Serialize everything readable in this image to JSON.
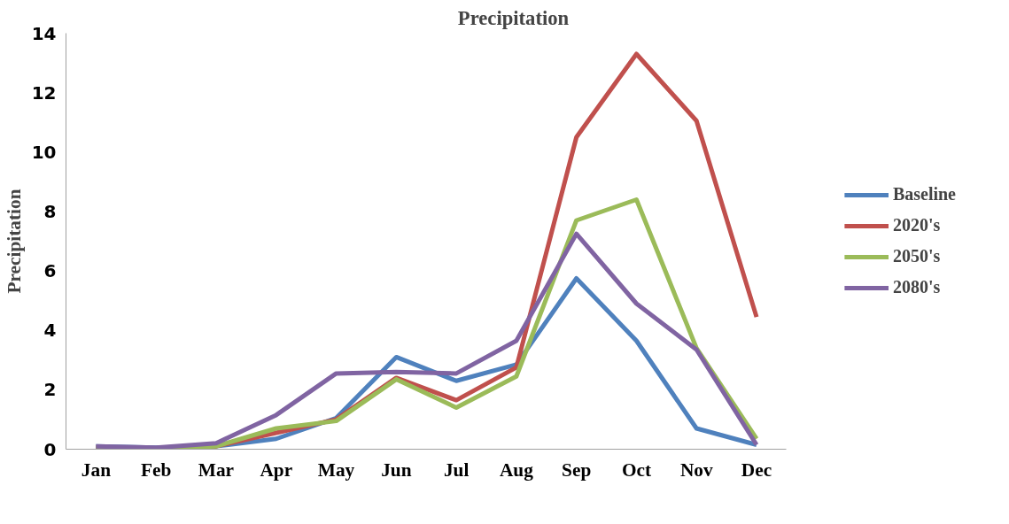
{
  "chart_data": {
    "type": "line",
    "title": "Precipitation",
    "ylabel": "Precipitation",
    "categories": [
      "Jan",
      "Feb",
      "Mar",
      "Apr",
      "May",
      "Jun",
      "Jul",
      "Aug",
      "Sep",
      "Oct",
      "Nov",
      "Dec"
    ],
    "series": [
      {
        "name": "Baseline",
        "color": "#4f81bd",
        "values": [
          0.1,
          0.05,
          0.1,
          0.35,
          1.05,
          3.1,
          2.3,
          2.85,
          5.75,
          3.65,
          0.7,
          0.15
        ]
      },
      {
        "name": "2020's",
        "color": "#c0504d",
        "values": [
          0.05,
          0.02,
          0.1,
          0.55,
          1.0,
          2.4,
          1.65,
          2.75,
          10.5,
          13.3,
          11.05,
          4.45
        ]
      },
      {
        "name": "2050's",
        "color": "#9bbb59",
        "values": [
          0.05,
          0.02,
          0.1,
          0.7,
          0.95,
          2.35,
          1.4,
          2.45,
          7.7,
          8.4,
          3.4,
          0.35
        ]
      },
      {
        "name": "2080's",
        "color": "#8064a2",
        "values": [
          0.1,
          0.05,
          0.2,
          1.15,
          2.55,
          2.6,
          2.55,
          3.65,
          7.25,
          4.9,
          3.35,
          0.15
        ]
      }
    ],
    "ylim": [
      0,
      14
    ],
    "yticks": [
      0,
      2,
      4,
      6,
      8,
      10,
      12,
      14
    ],
    "grid": false,
    "legend": "right",
    "marker": "none",
    "line_style": "solid"
  }
}
